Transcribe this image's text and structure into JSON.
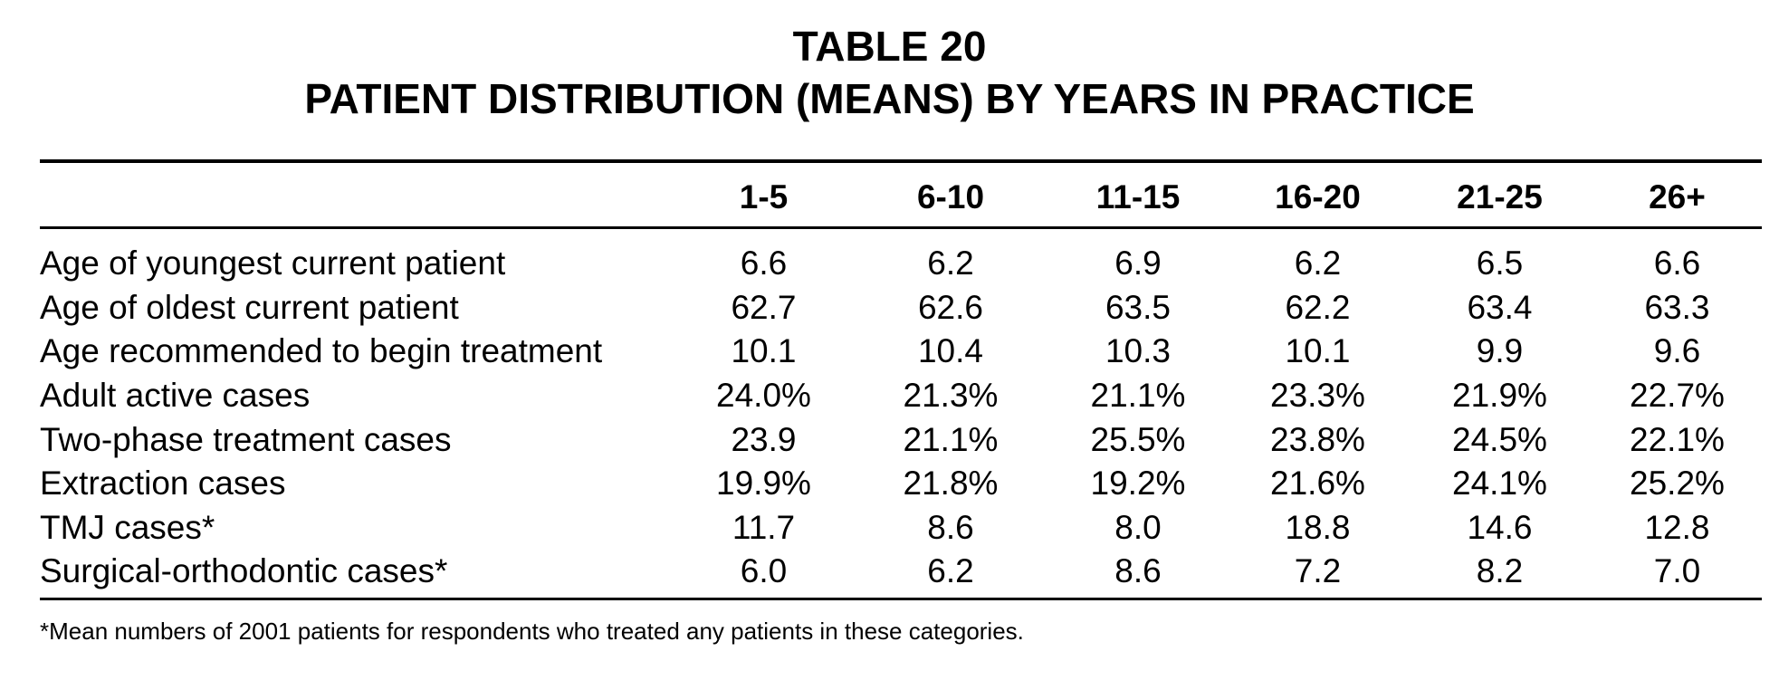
{
  "title": {
    "line1": "TABLE 20",
    "line2": "PATIENT DISTRIBUTION (MEANS) BY YEARS IN PRACTICE"
  },
  "table": {
    "columns": [
      "1-5",
      "6-10",
      "11-15",
      "16-20",
      "21-25",
      "26+"
    ],
    "rows": [
      {
        "label": "Age of youngest current patient",
        "values": [
          "6.6",
          "6.2",
          "6.9",
          "6.2",
          "6.5",
          "6.6"
        ]
      },
      {
        "label": "Age of oldest current patient",
        "values": [
          "62.7",
          "62.6",
          "63.5",
          "62.2",
          "63.4",
          "63.3"
        ]
      },
      {
        "label": "Age recommended to begin treatment",
        "values": [
          "10.1",
          "10.4",
          "10.3",
          "10.1",
          "9.9",
          "9.6"
        ]
      },
      {
        "label": "Adult active cases",
        "values": [
          "24.0%",
          "21.3%",
          "21.1%",
          "23.3%",
          "21.9%",
          "22.7%"
        ]
      },
      {
        "label": "Two-phase treatment cases",
        "values": [
          "23.9",
          "21.1%",
          "25.5%",
          "23.8%",
          "24.5%",
          "22.1%"
        ]
      },
      {
        "label": "Extraction cases",
        "values": [
          "19.9%",
          "21.8%",
          "19.2%",
          "21.6%",
          "24.1%",
          "25.2%"
        ]
      },
      {
        "label": "TMJ cases*",
        "values": [
          "11.7",
          "8.6",
          "8.0",
          "18.8",
          "14.6",
          "12.8"
        ]
      },
      {
        "label": "Surgical-orthodontic cases*",
        "values": [
          "6.0",
          "6.2",
          "8.6",
          "7.2",
          "8.2",
          "7.0"
        ]
      }
    ]
  },
  "footnote": "*Mean numbers of 2001 patients for respondents who treated any patients in these categories."
}
